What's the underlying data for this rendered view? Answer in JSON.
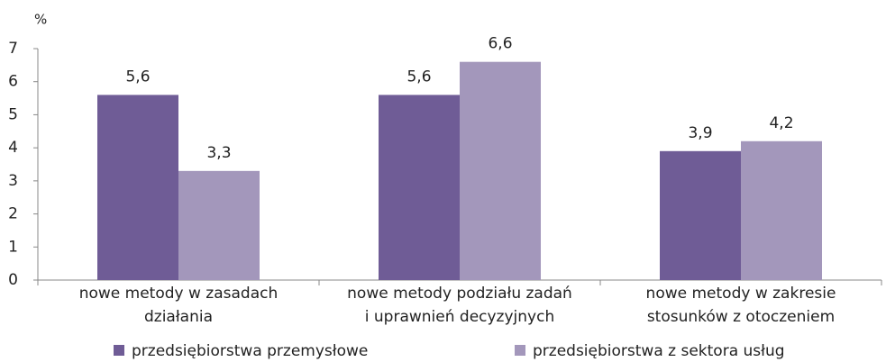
{
  "chart_data": {
    "type": "bar",
    "y_label": "%",
    "categories": [
      "nowe metody w zasadach\ndziałania",
      "nowe metody podziału zadań\ni uprawnień decyzyjnych",
      "nowe metody w zakresie\nstosunków  z otoczeniem"
    ],
    "series": [
      {
        "name": "przedsiębiorstwa przemysłowe",
        "color": "#6f5c96",
        "values": [
          5.6,
          5.6,
          3.9
        ],
        "value_labels": [
          "5,6",
          "5,6",
          "3,9"
        ]
      },
      {
        "name": "przedsiębiorstwa z sektora usług",
        "color": "#a397bb",
        "values": [
          3.3,
          6.6,
          4.2
        ],
        "value_labels": [
          "3,3",
          "6,6",
          "4,2"
        ]
      }
    ],
    "ylim": [
      0,
      7
    ],
    "yticks": [
      0,
      1,
      2,
      3,
      4,
      5,
      6,
      7
    ],
    "grid": false,
    "legend": "bottom"
  }
}
